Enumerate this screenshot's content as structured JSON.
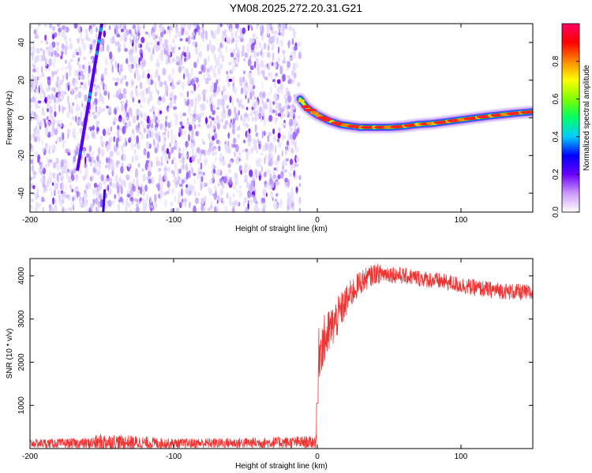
{
  "title": "YM08.2025.272.20.31.G21",
  "chart_data": [
    {
      "type": "heatmap",
      "name": "spectrogram",
      "xlabel": "Height of straight line (km)",
      "ylabel": "Frequency (Hz)",
      "xlim": [
        -200,
        150
      ],
      "ylim": [
        -50,
        50
      ],
      "xticks": [
        -200,
        -100,
        0,
        100
      ],
      "yticks": [
        -40,
        -20,
        0,
        20,
        40
      ],
      "colorbar": {
        "label": "Normalized spectral amplitude",
        "range": [
          0,
          1
        ],
        "ticks": [
          0.0,
          0.2,
          0.4,
          0.6,
          0.8
        ],
        "tick_labels": [
          "0.0",
          "0.2",
          "0.4",
          "0.6",
          "0.8"
        ],
        "colors": [
          "#ffffff",
          "#cc99ff",
          "#6a00ff",
          "#0000ff",
          "#00ccff",
          "#00ff66",
          "#80ff00",
          "#ffff00",
          "#ff8800",
          "#ff0000",
          "#ff0066"
        ]
      },
      "noise_region_x": [
        -200,
        -12
      ],
      "chirp_line": {
        "x_at_top": -150,
        "x_at_bottom": -167,
        "x_at_y50": -150
      },
      "ridge": {
        "x": [
          -12,
          -8,
          -4,
          0,
          4,
          8,
          12,
          16,
          20,
          25,
          30,
          40,
          50,
          60,
          70,
          80,
          90,
          100,
          110,
          120,
          130,
          140,
          150
        ],
        "y": [
          10,
          6,
          3.5,
          1.5,
          0,
          -1.5,
          -2.5,
          -3.5,
          -4,
          -4.5,
          -5,
          -5,
          -5,
          -4.5,
          -3.5,
          -3,
          -2,
          -1,
          0,
          1,
          1.8,
          2.6,
          3.2
        ]
      }
    },
    {
      "type": "line",
      "name": "snr",
      "xlabel": "Height of straight line (km)",
      "ylabel": "SNR (10 * v/v)",
      "xlim": [
        -200,
        150
      ],
      "ylim": [
        0,
        4400
      ],
      "xticks": [
        -200,
        -100,
        0,
        100
      ],
      "yticks": [
        1000,
        2000,
        3000,
        4000
      ],
      "color": "#ee3333",
      "envelope": {
        "x": [
          -200,
          -160,
          -150,
          -100,
          -50,
          -1,
          0,
          1,
          3,
          5,
          10,
          15,
          20,
          25,
          30,
          40,
          50,
          60,
          70,
          80,
          90,
          100,
          110,
          120,
          130,
          140,
          150
        ],
        "base": [
          120,
          120,
          150,
          120,
          130,
          150,
          1100,
          2200,
          2400,
          2500,
          2800,
          3100,
          3400,
          3650,
          3850,
          4050,
          4050,
          4000,
          3950,
          3900,
          3850,
          3780,
          3720,
          3680,
          3650,
          3620,
          3600
        ],
        "spread": [
          100,
          120,
          200,
          110,
          120,
          140,
          800,
          600,
          600,
          600,
          500,
          450,
          380,
          320,
          280,
          230,
          200,
          190,
          190,
          190,
          190,
          190,
          190,
          190,
          190,
          190,
          190
        ]
      }
    }
  ]
}
